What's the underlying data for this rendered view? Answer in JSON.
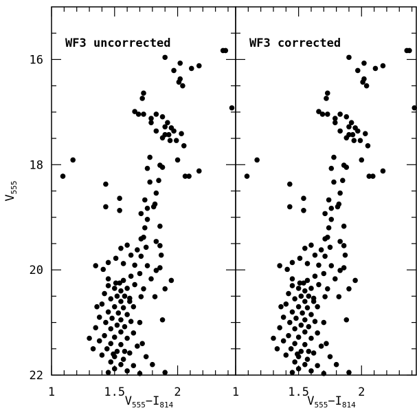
{
  "chart_data": [
    {
      "type": "scatter",
      "title": "WF3 uncorrected",
      "show_yticklabels": true,
      "xlabel": [
        {
          "text": "V"
        },
        {
          "text": "555",
          "sub": true
        },
        {
          "text": "−I"
        },
        {
          "text": "814",
          "sub": true
        }
      ],
      "ylabel": [
        {
          "text": "V"
        },
        {
          "text": "555",
          "sub": true
        }
      ],
      "xlim": [
        1,
        2.46
      ],
      "ylim": [
        15,
        22
      ],
      "y_inverted": true,
      "xticks": [
        1,
        1.5,
        2
      ],
      "yticks": [
        16,
        18,
        20,
        22
      ],
      "xminorticks": [
        1.1,
        1.2,
        1.3,
        1.4,
        1.6,
        1.7,
        1.8,
        1.9,
        2.1,
        2.2,
        2.3,
        2.4
      ],
      "yminorticks": [
        15.5,
        16.5,
        17,
        17.5,
        18.5,
        19,
        19.5,
        20.5,
        21,
        21.5
      ],
      "series": [
        {
          "color": "#000000",
          "x": [
            1.9,
            2.02,
            2.17,
            2.11,
            1.97,
            2.02,
            2.01,
            2.04,
            2.36,
            2.38,
            2.43,
            1.73,
            1.72,
            1.66,
            1.69,
            1.73,
            1.79,
            1.83,
            1.88,
            1.92,
            1.9,
            1.95,
            1.97,
            2.03,
            1.93,
            1.88,
            1.99,
            2.05,
            1.79,
            1.83,
            1.9,
            1.94,
            1.09,
            1.17,
            1.43,
            1.43,
            1.54,
            1.54,
            1.78,
            1.86,
            1.88,
            2.0,
            2.06,
            2.17,
            2.09,
            1.76,
            1.85,
            1.78,
            1.83,
            1.74,
            1.82,
            1.76,
            1.71,
            1.76,
            1.74,
            1.81,
            1.86,
            1.83,
            1.86,
            1.73,
            1.75,
            1.68,
            1.63,
            1.71,
            1.87,
            1.71,
            1.6,
            1.55,
            1.51,
            1.45,
            1.35,
            1.41,
            1.57,
            1.66,
            1.76,
            1.83,
            1.86,
            1.7,
            1.63,
            1.79,
            1.57,
            1.66,
            1.73,
            1.51,
            1.45,
            1.71,
            1.62,
            1.95,
            1.9,
            1.82,
            1.45,
            1.5,
            1.55,
            1.42,
            1.52,
            1.58,
            1.47,
            1.55,
            1.62,
            1.4,
            1.5,
            1.57,
            1.45,
            1.53,
            1.6,
            1.38,
            1.48,
            1.55,
            1.63,
            1.43,
            1.52,
            1.58,
            1.35,
            1.47,
            1.55,
            1.65,
            1.42,
            1.5,
            1.6,
            1.38,
            1.47,
            1.55,
            1.68,
            1.44,
            1.52,
            1.62,
            1.4,
            1.5,
            1.57,
            1.47,
            1.55,
            1.65,
            1.5,
            1.6,
            1.45,
            1.7,
            1.33,
            1.3,
            1.36,
            1.6,
            1.65,
            1.7,
            1.72,
            1.75,
            1.8,
            1.9,
            1.88,
            1.54,
            1.49,
            1.58
          ],
          "y": [
            15.96,
            16.07,
            16.12,
            16.17,
            16.21,
            16.37,
            16.43,
            16.5,
            15.83,
            15.83,
            16.92,
            16.64,
            16.74,
            16.99,
            17.04,
            17.04,
            17.12,
            17.04,
            17.09,
            17.2,
            17.28,
            17.3,
            17.36,
            17.41,
            17.43,
            17.49,
            17.54,
            17.64,
            17.2,
            17.36,
            17.43,
            17.54,
            18.22,
            17.91,
            18.37,
            18.8,
            18.64,
            18.87,
            17.86,
            18.01,
            18.05,
            17.91,
            18.22,
            18.12,
            18.22,
            18.07,
            18.3,
            18.33,
            18.54,
            18.67,
            18.75,
            18.83,
            18.93,
            19.04,
            19.2,
            18.8,
            19.17,
            19.46,
            19.54,
            19.38,
            19.57,
            19.62,
            19.72,
            19.74,
            19.72,
            19.41,
            19.53,
            19.59,
            19.78,
            19.86,
            19.92,
            19.99,
            19.88,
            19.91,
            19.92,
            20.01,
            19.96,
            20.07,
            20.12,
            20.17,
            20.2,
            20.28,
            20.36,
            20.25,
            20.17,
            20.51,
            20.54,
            20.2,
            20.36,
            20.51,
            20.3,
            20.35,
            20.4,
            20.45,
            20.5,
            20.5,
            20.55,
            20.6,
            20.6,
            20.65,
            20.7,
            20.72,
            20.8,
            20.82,
            20.85,
            20.9,
            20.92,
            20.95,
            20.98,
            21.0,
            21.05,
            21.08,
            21.1,
            21.12,
            21.18,
            21.2,
            21.25,
            21.28,
            21.3,
            21.35,
            21.4,
            21.42,
            21.45,
            21.5,
            21.55,
            21.58,
            21.62,
            21.65,
            21.7,
            21.75,
            21.8,
            21.82,
            21.88,
            21.92,
            21.95,
            21.97,
            21.5,
            21.3,
            20.7,
            20.35,
            20.7,
            21.0,
            21.4,
            21.65,
            21.8,
            21.95,
            20.95,
            20.25,
            21.6,
            21.55
          ]
        }
      ]
    },
    {
      "type": "scatter",
      "title": "WF3 corrected",
      "show_yticklabels": false,
      "xlabel": [
        {
          "text": "V"
        },
        {
          "text": "555",
          "sub": true
        },
        {
          "text": "−I"
        },
        {
          "text": "814",
          "sub": true
        }
      ],
      "xlim": [
        1,
        2.435
      ],
      "ylim": [
        15,
        22
      ],
      "y_inverted": true,
      "xticks": [
        1,
        1.5,
        2
      ],
      "yticks": [
        16,
        18,
        20,
        22
      ],
      "xminorticks": [
        1.1,
        1.2,
        1.3,
        1.4,
        1.6,
        1.7,
        1.8,
        1.9,
        2.1,
        2.2,
        2.3,
        2.4
      ],
      "yminorticks": [
        15.5,
        16.5,
        17,
        17.5,
        18.5,
        19,
        19.5,
        20.5,
        21,
        21.5
      ],
      "series": [
        {
          "color": "#000000",
          "x": [
            1.9,
            2.02,
            2.17,
            2.11,
            1.97,
            2.02,
            2.01,
            2.04,
            2.36,
            2.38,
            2.42,
            1.73,
            1.72,
            1.66,
            1.69,
            1.73,
            1.79,
            1.83,
            1.88,
            1.92,
            1.9,
            1.95,
            1.97,
            2.03,
            1.93,
            1.88,
            1.99,
            2.05,
            1.79,
            1.83,
            1.9,
            1.94,
            1.09,
            1.17,
            1.43,
            1.43,
            1.54,
            1.54,
            1.78,
            1.86,
            1.88,
            2.0,
            2.06,
            2.17,
            2.09,
            1.76,
            1.85,
            1.78,
            1.83,
            1.74,
            1.82,
            1.76,
            1.71,
            1.76,
            1.74,
            1.81,
            1.86,
            1.83,
            1.86,
            1.73,
            1.75,
            1.68,
            1.63,
            1.71,
            1.87,
            1.71,
            1.6,
            1.55,
            1.51,
            1.45,
            1.35,
            1.41,
            1.57,
            1.66,
            1.76,
            1.83,
            1.86,
            1.7,
            1.63,
            1.79,
            1.57,
            1.66,
            1.73,
            1.51,
            1.45,
            1.71,
            1.62,
            1.95,
            1.9,
            1.82,
            1.45,
            1.5,
            1.55,
            1.42,
            1.52,
            1.58,
            1.47,
            1.55,
            1.62,
            1.4,
            1.5,
            1.57,
            1.45,
            1.53,
            1.6,
            1.38,
            1.48,
            1.55,
            1.63,
            1.43,
            1.52,
            1.58,
            1.35,
            1.47,
            1.55,
            1.65,
            1.42,
            1.5,
            1.6,
            1.38,
            1.47,
            1.55,
            1.68,
            1.44,
            1.52,
            1.62,
            1.4,
            1.5,
            1.57,
            1.47,
            1.55,
            1.65,
            1.5,
            1.6,
            1.45,
            1.7,
            1.33,
            1.3,
            1.36,
            1.6,
            1.65,
            1.7,
            1.72,
            1.75,
            1.8,
            1.9,
            1.88,
            1.54,
            1.49,
            1.58
          ],
          "y": [
            15.96,
            16.07,
            16.12,
            16.17,
            16.21,
            16.37,
            16.43,
            16.5,
            15.83,
            15.83,
            16.92,
            16.64,
            16.74,
            16.99,
            17.04,
            17.04,
            17.12,
            17.04,
            17.09,
            17.2,
            17.28,
            17.3,
            17.36,
            17.41,
            17.43,
            17.49,
            17.54,
            17.64,
            17.2,
            17.36,
            17.43,
            17.54,
            18.22,
            17.91,
            18.37,
            18.8,
            18.64,
            18.87,
            17.86,
            18.01,
            18.05,
            17.91,
            18.22,
            18.12,
            18.22,
            18.07,
            18.3,
            18.33,
            18.54,
            18.67,
            18.75,
            18.83,
            18.93,
            19.04,
            19.2,
            18.8,
            19.17,
            19.46,
            19.54,
            19.38,
            19.57,
            19.62,
            19.72,
            19.74,
            19.72,
            19.41,
            19.53,
            19.59,
            19.78,
            19.86,
            19.92,
            19.99,
            19.88,
            19.91,
            19.92,
            20.01,
            19.96,
            20.07,
            20.12,
            20.17,
            20.2,
            20.28,
            20.36,
            20.25,
            20.17,
            20.51,
            20.54,
            20.2,
            20.36,
            20.51,
            20.3,
            20.35,
            20.4,
            20.45,
            20.5,
            20.5,
            20.55,
            20.6,
            20.6,
            20.65,
            20.7,
            20.72,
            20.8,
            20.82,
            20.85,
            20.9,
            20.92,
            20.95,
            20.98,
            21.0,
            21.05,
            21.08,
            21.1,
            21.12,
            21.18,
            21.2,
            21.25,
            21.28,
            21.3,
            21.35,
            21.4,
            21.42,
            21.45,
            21.5,
            21.55,
            21.58,
            21.62,
            21.65,
            21.7,
            21.75,
            21.8,
            21.82,
            21.88,
            21.92,
            21.95,
            21.97,
            21.5,
            21.3,
            20.7,
            20.35,
            20.7,
            21.0,
            21.4,
            21.65,
            21.8,
            21.95,
            20.95,
            20.25,
            21.6,
            21.55
          ]
        }
      ]
    }
  ]
}
